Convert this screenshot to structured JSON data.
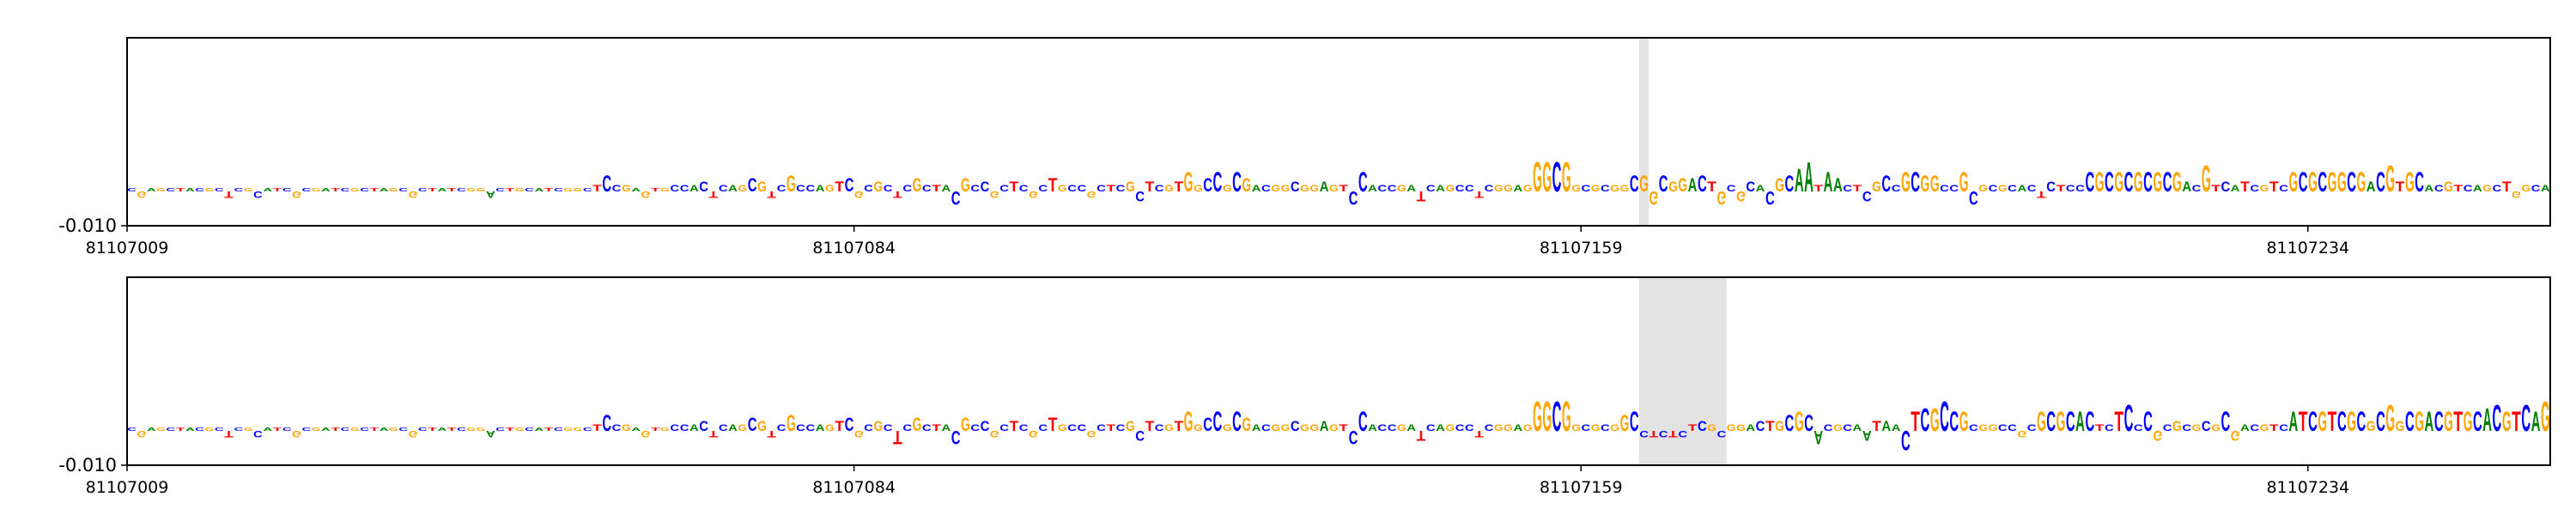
{
  "chart_data": [
    {
      "type": "logo",
      "sequence": "CGAGCTACGCTCGCATCGCGATCGCTAGCGCTATCGGACTGCATCGGCTCCGAGTGCCACTCAGCGTCGCCAGTCGCGCTCGCTACGCCGCTCGCTGCCGCTCGCTCGTGGCCGCGACGGCGGAGTCCACCGATCAGCCTCGGAGGGCGGCGCGGCGGCGGACTGCGCACGCAATAACTCGCCGCGGCCGCGCGCACTCTCCCGCGCGCGCGACGTCATCGTCGCGCGGCGACGTGCACGTCAGCTGGCA",
      "values": [
        0.001,
        -0.002,
        0.001,
        0.001,
        0.001,
        0.001,
        0.001,
        0.001,
        0.001,
        0.001,
        -0.002,
        0.001,
        0.001,
        -0.002,
        0.001,
        0.001,
        0.001,
        -0.002,
        0.001,
        0.001,
        0.001,
        0.001,
        0.001,
        0.001,
        0.001,
        0.001,
        0.001,
        0.001,
        0.001,
        -0.002,
        0.001,
        0.001,
        0.001,
        0.001,
        0.001,
        0.001,
        0.001,
        -0.002,
        0.001,
        0.001,
        0.001,
        0.001,
        0.001,
        0.001,
        0.001,
        0.001,
        0.001,
        0.001,
        0.002,
        0.005,
        0.002,
        0.002,
        0.001,
        -0.002,
        0.001,
        0.001,
        0.002,
        0.002,
        0.002,
        0.003,
        -0.002,
        0.002,
        0.002,
        0.002,
        0.004,
        0.003,
        -0.002,
        0.002,
        0.005,
        0.002,
        0.002,
        0.002,
        0.002,
        0.003,
        0.004,
        -0.002,
        0.002,
        0.003,
        0.002,
        -0.002,
        0.002,
        0.004,
        0.002,
        0.002,
        0.002,
        -0.004,
        0.004,
        0.002,
        0.003,
        -0.002,
        0.002,
        0.003,
        0.002,
        -0.002,
        0.002,
        0.004,
        0.002,
        0.002,
        0.002,
        -0.002,
        0.002,
        0.002,
        0.002,
        0.003,
        -0.003,
        0.003,
        0.002,
        0.002,
        0.003,
        0.006,
        0.002,
        0.004,
        0.006,
        0.002,
        0.006,
        0.004,
        0.002,
        0.002,
        0.002,
        0.002,
        0.003,
        0.002,
        0.002,
        0.003,
        0.002,
        0.002,
        -0.004,
        0.006,
        0.002,
        0.002,
        0.002,
        0.002,
        0.002,
        -0.003,
        0.002,
        0.002,
        0.002,
        0.002,
        0.002,
        -0.002,
        0.002,
        0.002,
        0.002,
        0.002,
        0.002,
        0.009,
        0.009,
        0.009,
        0.009,
        0.002,
        0.002,
        0.002,
        0.002,
        0.002,
        0.002,
        0.005,
        0.005,
        -0.004,
        0.005,
        0.003,
        0.004,
        0.004,
        0.005,
        0.003,
        -0.004,
        0.002,
        -0.003,
        0.003,
        0.002,
        -0.004,
        0.004,
        0.005,
        0.007,
        0.009,
        0.002,
        0.006,
        0.004,
        0.002,
        0.002,
        -0.003,
        0.003,
        0.005,
        0.002,
        0.006,
        0.006,
        0.005,
        0.005,
        0.002,
        0.002,
        0.006,
        -0.004,
        0.002,
        0.002,
        0.002,
        0.002,
        0.002,
        0.002,
        -0.002,
        0.003,
        0.002,
        0.002,
        0.002,
        0.006,
        0.006,
        0.006,
        0.006,
        0.006,
        0.006,
        0.006,
        0.006,
        0.006,
        0.006,
        0.003,
        0.002,
        0.008,
        0.002,
        0.003,
        0.002,
        0.003,
        0.002,
        0.002,
        0.003,
        0.002,
        0.006,
        0.006,
        0.006,
        0.006,
        0.006,
        0.006,
        0.006,
        0.006,
        0.003,
        0.006,
        0.008,
        0.003,
        0.006,
        0.006,
        0.002,
        0.002,
        0.003,
        0.002,
        0.002,
        0.002,
        0.002,
        0.002,
        0.003,
        -0.002,
        0.002,
        0.002,
        0.002
      ],
      "colors": {
        "A": "#008000",
        "C": "#0000ff",
        "G": "#ffa500",
        "T": "#ff0000"
      },
      "highlight": [
        81107165,
        81107166
      ],
      "xlim": [
        81107009,
        81107259
      ],
      "xticks": [
        81107009,
        81107084,
        81107159,
        81107234
      ],
      "ylim": [
        -0.01,
        0.045
      ],
      "yticks": [
        {
          "value": -0.01,
          "label": "-0.010"
        }
      ]
    },
    {
      "type": "logo",
      "sequence": "CGAGCTACGCTCGCATCGCGATCGCTAGCGCTATCGGACTGCATCGGCTCCGAGTGCCACTCAGCGTCGCCAGTCGCGCTCGCTACGCCGCTCGCTGCCGCTCGCTCGTGGCCGCGACGGCGGAGTCCACCGATCAGCCTCGGAGGGCGGCGCGGCCTCTCTCGCGGACTGCGCACGCAATAACTCGCCGCGGCCGCGCGCACTCTCCCGCGCGCGCGACGTCATCGTCGCGCGGCGACGTGCACGTCAGCTGGCG",
      "values": [
        0.001,
        -0.002,
        0.001,
        0.001,
        0.001,
        0.001,
        0.001,
        0.001,
        0.001,
        0.001,
        -0.002,
        0.001,
        0.001,
        -0.002,
        0.001,
        0.001,
        0.001,
        -0.002,
        0.001,
        0.001,
        0.001,
        0.001,
        0.001,
        0.001,
        0.001,
        0.001,
        0.001,
        0.001,
        0.001,
        -0.002,
        0.001,
        0.001,
        0.001,
        0.001,
        0.001,
        0.001,
        0.001,
        -0.002,
        0.001,
        0.001,
        0.001,
        0.001,
        0.001,
        0.001,
        0.001,
        0.001,
        0.001,
        0.001,
        0.002,
        0.005,
        0.002,
        0.002,
        0.001,
        -0.002,
        0.001,
        0.001,
        0.002,
        0.002,
        0.002,
        0.003,
        -0.002,
        0.002,
        0.002,
        0.002,
        0.004,
        0.003,
        -0.002,
        0.002,
        0.005,
        0.002,
        0.002,
        0.002,
        0.002,
        0.003,
        0.004,
        -0.002,
        0.002,
        0.003,
        0.002,
        -0.004,
        0.002,
        0.004,
        0.002,
        0.002,
        0.002,
        -0.004,
        0.004,
        0.002,
        0.003,
        -0.002,
        0.002,
        0.003,
        0.002,
        -0.002,
        0.002,
        0.004,
        0.002,
        0.002,
        0.002,
        -0.002,
        0.002,
        0.002,
        0.002,
        0.003,
        -0.003,
        0.003,
        0.002,
        0.002,
        0.003,
        0.006,
        0.002,
        0.004,
        0.006,
        0.002,
        0.006,
        0.004,
        0.002,
        0.002,
        0.002,
        0.002,
        0.003,
        0.002,
        0.002,
        0.003,
        0.002,
        0.002,
        -0.004,
        0.006,
        0.002,
        0.002,
        0.002,
        0.002,
        0.002,
        -0.003,
        0.002,
        0.002,
        0.002,
        0.002,
        0.002,
        -0.002,
        0.002,
        0.002,
        0.002,
        0.002,
        0.002,
        0.009,
        0.009,
        0.009,
        0.009,
        0.002,
        0.002,
        0.002,
        0.002,
        0.002,
        0.005,
        0.006,
        -0.002,
        -0.002,
        -0.002,
        -0.002,
        -0.002,
        0.002,
        0.003,
        0.002,
        -0.002,
        0.002,
        0.002,
        0.002,
        0.003,
        0.003,
        0.003,
        0.005,
        0.006,
        0.005,
        -0.004,
        0.002,
        0.002,
        0.002,
        0.002,
        -0.003,
        0.003,
        0.003,
        0.002,
        -0.006,
        0.006,
        0.007,
        0.007,
        0.009,
        0.006,
        0.006,
        0.002,
        0.002,
        0.002,
        0.002,
        0.002,
        -0.002,
        0.002,
        0.006,
        0.006,
        0.006,
        0.006,
        0.006,
        0.006,
        0.002,
        0.002,
        0.006,
        0.008,
        0.002,
        0.006,
        -0.003,
        0.002,
        0.003,
        0.002,
        0.002,
        0.003,
        0.002,
        0.006,
        -0.003,
        0.002,
        0.002,
        0.002,
        0.002,
        0.002,
        0.006,
        0.006,
        0.006,
        0.006,
        0.006,
        0.006,
        0.006,
        0.006,
        0.003,
        0.006,
        0.008,
        0.003,
        0.006,
        0.006,
        0.006,
        0.006,
        0.006,
        0.006,
        0.006,
        0.006,
        0.007,
        0.008,
        0.006,
        0.006,
        0.008,
        0.006,
        0.009
      ],
      "colors": {
        "A": "#008000",
        "C": "#0000ff",
        "G": "#ffa500",
        "T": "#ff0000"
      },
      "highlight": [
        81107165,
        81107174
      ],
      "xlim": [
        81107009,
        81107259
      ],
      "xticks": [
        81107009,
        81107084,
        81107159,
        81107234
      ],
      "ylim": [
        -0.01,
        0.045
      ],
      "yticks": [
        {
          "value": -0.01,
          "label": "-0.010"
        }
      ]
    }
  ]
}
